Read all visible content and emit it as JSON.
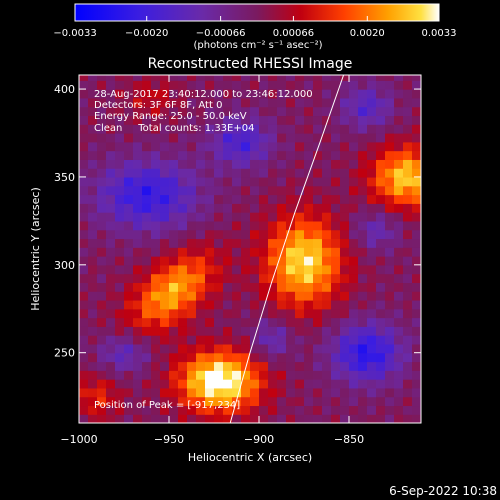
{
  "chart_data": {
    "type": "heatmap",
    "title": "Reconstructed RHESSI Image",
    "xlabel": "Heliocentric X (arcsec)",
    "ylabel": "Heliocentric Y (arcsec)",
    "xlim": [
      -1000,
      -810
    ],
    "ylim": [
      210,
      408
    ],
    "x_ticks": [
      -1000,
      -950,
      -900,
      -850
    ],
    "y_ticks": [
      250,
      300,
      350,
      400
    ],
    "x_tick_labels": [
      "−1000",
      "−950",
      "−900",
      "−850"
    ],
    "y_tick_labels": [
      "250",
      "300",
      "350",
      "400"
    ],
    "colorbar": {
      "min": -0.0033,
      "max": 0.0033,
      "ticks": [
        -0.0033,
        -0.002,
        -0.00066,
        0.00066,
        0.002,
        0.0033
      ],
      "tick_labels": [
        "−0.0033",
        "−0.0020",
        "−0.00066",
        "0.00066",
        "0.0020",
        "0.0033"
      ],
      "label": "(photons cm⁻² s⁻¹ asec⁻²)",
      "colormap": "blue-purple-red-orange-yellow-white"
    },
    "grid": false,
    "info_lines": [
      "28-Aug-2017 23:40:12.000 to 23:46:12.000",
      "Detectors: 3F 6F 8F, Att 0",
      "Energy Range: 25.0 - 50.0 keV",
      "Clean     Total counts: 1.33E+04"
    ],
    "peak_label": "Position of Peak = [-917,234]",
    "peak": {
      "x": -917,
      "y": 234
    },
    "limb_curve": [
      [
        -916,
        210
      ],
      [
        -905,
        250
      ],
      [
        -893,
        290
      ],
      [
        -880,
        330
      ],
      [
        -866,
        370
      ],
      [
        -853,
        408
      ]
    ],
    "sources": [
      {
        "x": -922,
        "y": 234,
        "sx": 16,
        "sy": 12,
        "amp": 0.0036
      },
      {
        "x": -948,
        "y": 285,
        "sx": 20,
        "sy": 11,
        "rot": 42,
        "amp": 0.0025
      },
      {
        "x": -875,
        "y": 302,
        "sx": 15,
        "sy": 18,
        "amp": 0.003
      },
      {
        "x": -818,
        "y": 350,
        "sx": 14,
        "sy": 12,
        "amp": 0.0028
      },
      {
        "x": -990,
        "y": 225,
        "sx": 9,
        "sy": 9,
        "amp": 0.0012
      },
      {
        "x": -960,
        "y": 395,
        "sx": 10,
        "sy": 8,
        "amp": 0.0008
      },
      {
        "x": -962,
        "y": 340,
        "sx": 20,
        "sy": 14,
        "amp": -0.0022
      },
      {
        "x": -840,
        "y": 250,
        "sx": 14,
        "sy": 12,
        "amp": -0.0024
      },
      {
        "x": -910,
        "y": 370,
        "sx": 12,
        "sy": 10,
        "amp": -0.0018
      },
      {
        "x": -840,
        "y": 390,
        "sx": 10,
        "sy": 9,
        "amp": -0.0015
      },
      {
        "x": -975,
        "y": 250,
        "sx": 10,
        "sy": 8,
        "amp": -0.0014
      },
      {
        "x": -893,
        "y": 258,
        "sx": 8,
        "sy": 8,
        "amp": -0.0013
      },
      {
        "x": -835,
        "y": 320,
        "sx": 9,
        "sy": 8,
        "amp": -0.0012
      }
    ],
    "annotation_footer": "6-Sep-2022 10:38"
  }
}
